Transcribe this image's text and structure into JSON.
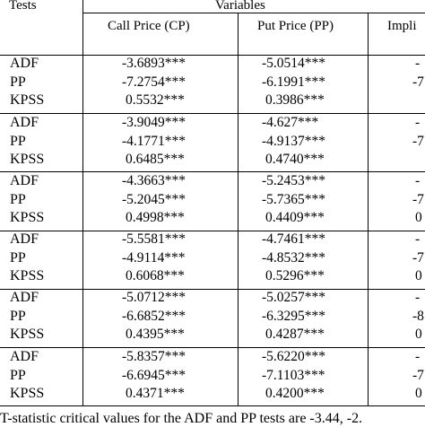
{
  "table": {
    "header": {
      "tests": "Tests",
      "variables": "Variables",
      "columns": [
        "Call Price (CP)",
        "Put Price (PP)",
        "Impli"
      ]
    },
    "groups": [
      {
        "rows": [
          {
            "test": "ADF",
            "cp": "-3.6893***",
            "pp": "-5.0514***",
            "iv": "-"
          },
          {
            "test": "PP",
            "cp": "-7.2754***",
            "pp": "-6.1991***",
            "iv": "-7"
          },
          {
            "test": "KPSS",
            "cp": "0.5532***",
            "pp": "0.3986***",
            "iv": ""
          }
        ]
      },
      {
        "rows": [
          {
            "test": "ADF",
            "cp": "-3.9049***",
            "pp": "-4.627***",
            "iv": "-"
          },
          {
            "test": "PP",
            "cp": "-4.1771***",
            "pp": "-4.9137***",
            "iv": "-7"
          },
          {
            "test": "KPSS",
            "cp": "0.6485***",
            "pp": "0.4740***",
            "iv": ""
          }
        ]
      },
      {
        "rows": [
          {
            "test": "ADF",
            "cp": "-4.3663***",
            "pp": "-5.2453***",
            "iv": "-"
          },
          {
            "test": "PP",
            "cp": "-5.2045***",
            "pp": "-5.7365***",
            "iv": "-7"
          },
          {
            "test": "KPSS",
            "cp": "0.4998***",
            "pp": "0.4409***",
            "iv": "0"
          }
        ]
      },
      {
        "rows": [
          {
            "test": "ADF",
            "cp": "-5.5581***",
            "pp": "-4.7461***",
            "iv": "-"
          },
          {
            "test": "PP",
            "cp": "-4.9114***",
            "pp": "-4.8532***",
            "iv": "-7"
          },
          {
            "test": "KPSS",
            "cp": "0.6068***",
            "pp": "0.5296***",
            "iv": "0"
          }
        ]
      },
      {
        "rows": [
          {
            "test": "ADF",
            "cp": "-5.0712***",
            "pp": "-5.0257***",
            "iv": "-"
          },
          {
            "test": "PP",
            "cp": "-6.6852***",
            "pp": "-6.3295***",
            "iv": "-8"
          },
          {
            "test": "KPSS",
            "cp": "0.4395***",
            "pp": "0.4287***",
            "iv": "0"
          }
        ]
      },
      {
        "rows": [
          {
            "test": "ADF",
            "cp": "-5.8357***",
            "pp": "-5.6220***",
            "iv": "-"
          },
          {
            "test": "PP",
            "cp": "-6.6945***",
            "pp": "-7.1103***",
            "iv": "-7"
          },
          {
            "test": "KPSS",
            "cp": "0.4371***",
            "pp": "0.4200***",
            "iv": "0"
          }
        ]
      }
    ]
  },
  "footnote": "T-statistic critical values for the ADF and PP tests are -3.44, -2."
}
